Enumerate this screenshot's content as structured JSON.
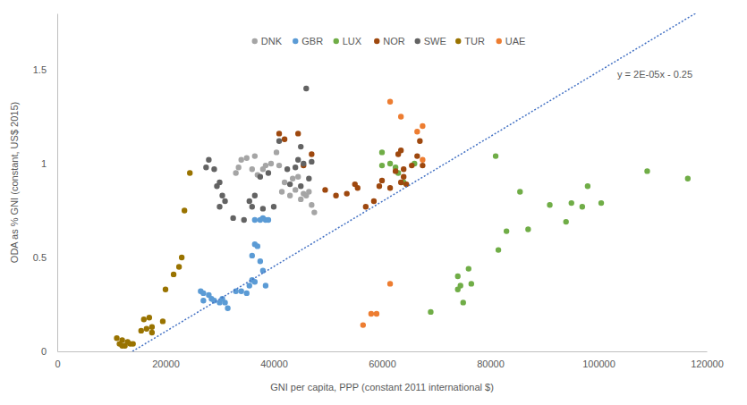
{
  "chart_data": {
    "type": "scatter",
    "x_label": "GNI per capita, PPP (constant 2011 international $)",
    "y_label": "ODA as % GNI (constant, US$ 2015)",
    "xlim": [
      0,
      120000
    ],
    "xticks": [
      0,
      20000,
      40000,
      60000,
      80000,
      100000,
      120000
    ],
    "ylim": [
      0,
      1.8
    ],
    "yticks": [
      0,
      0.5,
      1,
      1.5
    ],
    "grid": false,
    "legend": "top",
    "marker": "circle",
    "annotation": "y = 2E-05x - 0.25",
    "trendline": {
      "type": "line",
      "line_style": "dotted",
      "color": "#4472c4",
      "x": [
        13900,
        117900
      ],
      "values": [
        0,
        1.8
      ]
    },
    "series": [
      {
        "name": "DNK",
        "color": "#a5a5a5",
        "x": [
          33000,
          33500,
          34000,
          35000,
          36000,
          36500,
          37000,
          38000,
          38500,
          39500,
          40500,
          41000,
          41500,
          42000,
          43000,
          44000,
          45000,
          45500,
          46000,
          46500,
          47000,
          47500,
          44500,
          43500
        ],
        "values": [
          0.95,
          0.98,
          1.02,
          1.03,
          0.97,
          1.04,
          0.94,
          0.97,
          0.99,
          1.0,
          1.06,
          0.99,
          0.85,
          0.9,
          0.83,
          0.86,
          0.81,
          0.84,
          0.83,
          0.85,
          0.78,
          0.74,
          0.93,
          0.92
        ]
      },
      {
        "name": "GBR",
        "color": "#5b9bd5",
        "x": [
          26500,
          27000,
          27000,
          28000,
          28500,
          29000,
          30000,
          31000,
          31500,
          30500,
          33000,
          34000,
          35000,
          35500,
          36000,
          36500,
          36000,
          36500,
          37000,
          37500,
          38000,
          38500,
          37500,
          38000,
          38500,
          39000,
          36500
        ],
        "values": [
          0.32,
          0.31,
          0.27,
          0.3,
          0.28,
          0.27,
          0.26,
          0.26,
          0.23,
          0.28,
          0.32,
          0.32,
          0.31,
          0.35,
          0.38,
          0.37,
          0.51,
          0.57,
          0.56,
          0.48,
          0.43,
          0.35,
          0.7,
          0.71,
          0.7,
          0.7,
          0.7
        ]
      },
      {
        "name": "LUX",
        "color": "#70ad47",
        "x": [
          60000,
          60000,
          61500,
          62500,
          63000,
          64000,
          66000,
          69000,
          74000,
          74000,
          74500,
          75000,
          76000,
          76500,
          81000,
          81500,
          83000,
          85500,
          87000,
          91000,
          94000,
          95000,
          97000,
          98000,
          100500,
          109000,
          116500
        ],
        "values": [
          1.06,
          0.99,
          1.0,
          0.98,
          0.95,
          0.9,
          1.0,
          0.21,
          0.4,
          0.33,
          0.35,
          0.26,
          0.44,
          0.36,
          1.04,
          0.54,
          0.64,
          0.85,
          0.65,
          0.78,
          0.69,
          0.79,
          0.77,
          0.88,
          0.79,
          0.96,
          0.92
        ]
      },
      {
        "name": "NOR",
        "color": "#9e480e",
        "x": [
          41000,
          42000,
          44500,
          45500,
          47000,
          49500,
          51500,
          53500,
          55000,
          55500,
          57000,
          58500,
          59500,
          60000,
          61500,
          62500,
          63000,
          63500,
          64000,
          64500,
          63500,
          65500,
          66500,
          67000,
          67500,
          64000
        ],
        "values": [
          1.16,
          1.13,
          1.16,
          0.99,
          1.05,
          0.86,
          0.83,
          0.84,
          0.89,
          0.87,
          0.77,
          0.8,
          0.88,
          0.91,
          0.87,
          0.96,
          1.05,
          1.07,
          0.93,
          0.89,
          0.9,
          0.99,
          1.04,
          1.12,
          0.99,
          0.97
        ]
      },
      {
        "name": "SWE",
        "color": "#636363",
        "x": [
          27500,
          28000,
          29000,
          29500,
          30000,
          30000,
          30500,
          31000,
          32500,
          34500,
          35500,
          36000,
          36500,
          37500,
          38000,
          39000,
          40000,
          41000,
          42500,
          43000,
          44000,
          44500,
          45000,
          45500,
          46000,
          46500,
          47000,
          45000
        ],
        "values": [
          0.98,
          1.02,
          0.97,
          0.88,
          0.9,
          0.77,
          0.83,
          0.8,
          0.71,
          0.7,
          0.8,
          0.77,
          0.83,
          0.93,
          0.76,
          0.95,
          0.77,
          1.12,
          0.97,
          0.89,
          0.98,
          1.02,
          1.09,
          1.0,
          1.4,
          0.92,
          1.01,
          0.88
        ]
      },
      {
        "name": "TUR",
        "color": "#997300",
        "x": [
          11000,
          11500,
          12000,
          12500,
          13000,
          13500,
          12000,
          14000,
          15500,
          16000,
          17000,
          17500,
          17500,
          16500,
          19500,
          20000,
          21500,
          22500,
          23000,
          23500,
          24500
        ],
        "values": [
          0.07,
          0.04,
          0.06,
          0.03,
          0.05,
          0.04,
          0.03,
          0.04,
          0.11,
          0.17,
          0.18,
          0.13,
          0.1,
          0.12,
          0.16,
          0.33,
          0.41,
          0.45,
          0.5,
          0.75,
          0.95
        ]
      },
      {
        "name": "UAE",
        "color": "#ed7d31",
        "x": [
          56500,
          58000,
          59000,
          61500,
          61500,
          63500,
          66500,
          67500,
          67500
        ],
        "values": [
          0.14,
          0.2,
          0.2,
          0.36,
          1.33,
          1.25,
          1.17,
          1.2,
          1.02
        ]
      }
    ]
  }
}
